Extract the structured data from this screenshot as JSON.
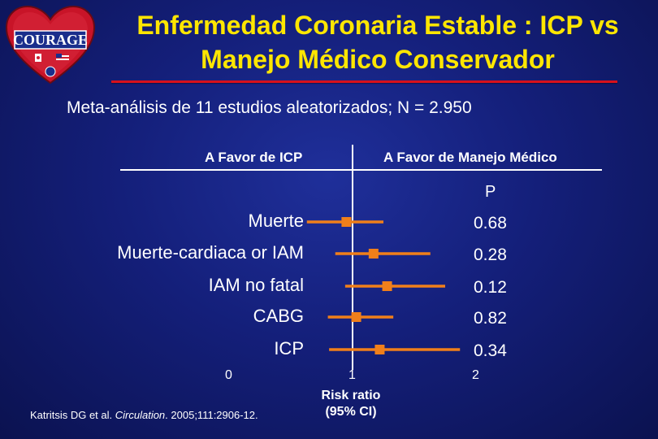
{
  "slide": {
    "title_line1": "Enfermedad Coronaria Estable : ICP vs",
    "title_line2": "Manejo Médico Conservador",
    "subtitle": "Meta-análisis de 11 estudios aleatorizados; N = 2.950",
    "citation_authors": "Katritsis DG et al. ",
    "citation_journal": "Circulation",
    "citation_rest": ". 2005;111:2906-12.",
    "logo_text": "COURAGE"
  },
  "colors": {
    "title": "#ffe600",
    "rule": "#d8111c",
    "marker": "#f07f1a",
    "text": "#ffffff"
  },
  "chart_data": {
    "type": "forest",
    "favor_left": "A Favor de ICP",
    "favor_right": "A Favor de Manejo Médico",
    "p_header": "P",
    "xlabel_line1": "Risk ratio",
    "xlabel_line2": "(95% CI)",
    "xlim": [
      0,
      2
    ],
    "xticks": [
      "0",
      "1",
      "2"
    ],
    "reference_line": 1,
    "rows": [
      {
        "label": "Muerte",
        "rr": 0.95,
        "ci": [
          0.63,
          1.25
        ],
        "p": "0.68"
      },
      {
        "label": "Muerte-cardiaca or IAM",
        "rr": 1.17,
        "ci": [
          0.86,
          1.63
        ],
        "p": "0.28"
      },
      {
        "label": "IAM no fatal",
        "rr": 1.28,
        "ci": [
          0.94,
          1.75
        ],
        "p": "0.12"
      },
      {
        "label": "CABG",
        "rr": 1.03,
        "ci": [
          0.8,
          1.33
        ],
        "p": "0.82"
      },
      {
        "label": "ICP",
        "rr": 1.22,
        "ci": [
          0.81,
          1.87
        ],
        "p": "0.34"
      }
    ]
  }
}
